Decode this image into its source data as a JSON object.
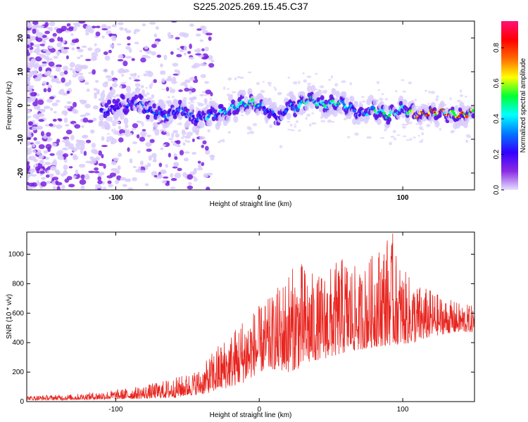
{
  "title": "S225.2025.269.15.45.C37",
  "chart_data": [
    {
      "type": "heatmap",
      "title": "S225.2025.269.15.45.C37",
      "xlabel": "Height of straight line (km)",
      "ylabel": "Frequency (Hz)",
      "xlim": [
        -162,
        150
      ],
      "ylim": [
        -25,
        25
      ],
      "xticks": [
        -100,
        0,
        100
      ],
      "xtick_labels": [
        "-100",
        "0",
        "100"
      ],
      "yticks": [
        20,
        10,
        0,
        -10,
        -20
      ],
      "ytick_labels": [
        "20",
        "10",
        "0",
        "-10",
        "-20"
      ],
      "colorbar": {
        "label": "Normalized spectral amplitude",
        "range": [
          0,
          0.95
        ],
        "ticks": [
          0,
          0.2,
          0.4,
          0.6,
          0.8
        ],
        "tick_labels": [
          "0.0",
          "0.2",
          "0.4",
          "0.6",
          "0.8"
        ],
        "colormap": [
          "#e6e0ff",
          "#8a2be2",
          "#3300ff",
          "#0077ff",
          "#00ffff",
          "#00ff33",
          "#ffff00",
          "#ff6a00",
          "#ff0000",
          "#ff1177"
        ]
      },
      "ridge": {
        "x": [
          -110,
          -95,
          -85,
          -75,
          -65,
          -55,
          -45,
          -35,
          -25,
          -15,
          -5,
          0,
          5,
          15,
          20,
          25,
          35,
          45,
          55,
          65,
          70,
          80,
          90,
          100,
          105,
          110,
          120,
          130,
          140,
          150
        ],
        "freq": [
          -2,
          0,
          1,
          -2,
          -3,
          -1,
          -4,
          -3,
          -2,
          0,
          1,
          0,
          -1,
          -4,
          0,
          -1,
          2,
          0,
          1,
          -1,
          -3,
          -1,
          -3,
          -1,
          -2,
          -3,
          -2,
          -2,
          -3,
          -2
        ],
        "amplitude": [
          0.3,
          0.25,
          0.3,
          0.3,
          0.35,
          0.35,
          0.3,
          0.4,
          0.45,
          0.5,
          0.55,
          0.5,
          0.4,
          0.3,
          0.4,
          0.4,
          0.6,
          0.5,
          0.55,
          0.45,
          0.35,
          0.5,
          0.55,
          0.5,
          0.6,
          0.9,
          0.85,
          0.8,
          0.9,
          0.8
        ]
      }
    },
    {
      "type": "line",
      "xlabel": "Height of straight line (km)",
      "ylabel": "SNR (10 * v/v)",
      "xlim": [
        -162,
        150
      ],
      "ylim": [
        0,
        1150
      ],
      "xticks": [
        -100,
        0,
        100
      ],
      "xtick_labels": [
        "-100",
        "0",
        "100"
      ],
      "yticks": [
        0,
        200,
        400,
        600,
        800,
        1000
      ],
      "ytick_labels": [
        "0",
        "200",
        "400",
        "600",
        "800",
        "1000"
      ],
      "color": "#e8251f",
      "envelope": {
        "x": [
          -162,
          -130,
          -100,
          -80,
          -60,
          -50,
          -40,
          -30,
          -20,
          -10,
          0,
          10,
          20,
          30,
          40,
          50,
          60,
          70,
          80,
          90,
          100,
          110,
          120,
          130,
          140,
          150
        ],
        "low": [
          10,
          12,
          15,
          20,
          25,
          40,
          50,
          70,
          100,
          130,
          200,
          220,
          200,
          230,
          280,
          300,
          330,
          350,
          370,
          380,
          390,
          400,
          440,
          460,
          470,
          470
        ],
        "high": [
          40,
          50,
          80,
          110,
          160,
          190,
          230,
          380,
          470,
          600,
          650,
          730,
          900,
          950,
          850,
          920,
          1000,
          880,
          1020,
          1140,
          900,
          800,
          760,
          700,
          670,
          650
        ]
      },
      "peak": {
        "x": 93,
        "y": 1140
      }
    }
  ]
}
